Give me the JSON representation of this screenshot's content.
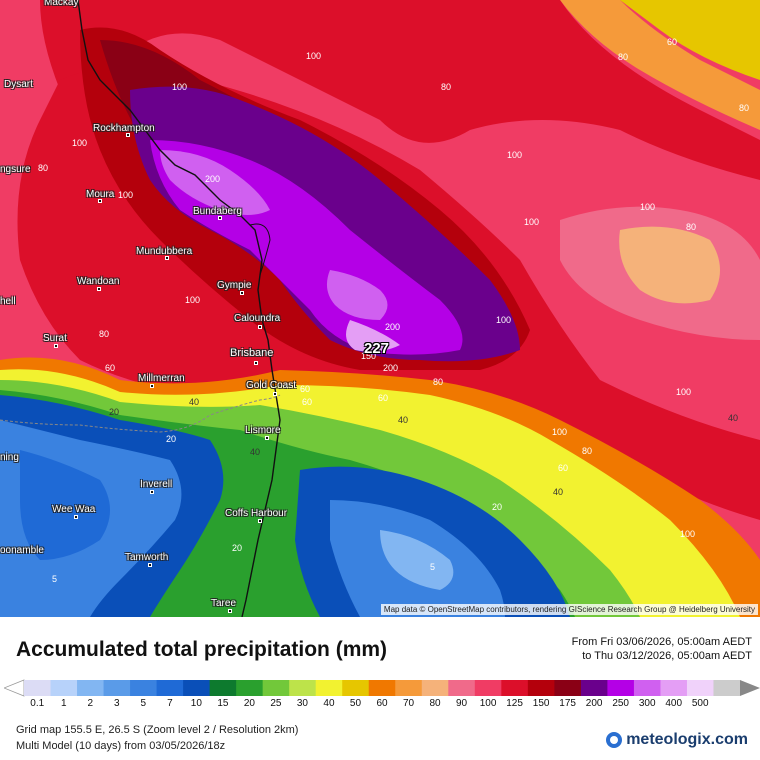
{
  "map": {
    "attribution": "Map data © OpenStreetMap contributors, rendering GIScience Research Group @ Heidelberg University",
    "max_value_label": "227",
    "places": [
      {
        "key": "mackay",
        "name": "Mackay"
      },
      {
        "key": "dysart",
        "name": "Dysart"
      },
      {
        "key": "rockhampton",
        "name": "Rockhampton"
      },
      {
        "key": "emerald",
        "name": "ngsure"
      },
      {
        "key": "moura",
        "name": "Moura"
      },
      {
        "key": "bundaberg",
        "name": "Bundaberg"
      },
      {
        "key": "mundubbera",
        "name": "Mundubbera"
      },
      {
        "key": "wandoan",
        "name": "Wandoan"
      },
      {
        "key": "gympie",
        "name": "Gympie"
      },
      {
        "key": "caloundra",
        "name": "Caloundra"
      },
      {
        "key": "roma",
        "name": "hell"
      },
      {
        "key": "surat",
        "name": "Surat"
      },
      {
        "key": "brisbane",
        "name": "Brisbane"
      },
      {
        "key": "millmerran",
        "name": "Millmerran"
      },
      {
        "key": "goldcoast",
        "name": "Gold Coast"
      },
      {
        "key": "lismore",
        "name": "Lismore"
      },
      {
        "key": "goondiwindi",
        "name": "ning"
      },
      {
        "key": "inverell",
        "name": "Inverell"
      },
      {
        "key": "weewaa",
        "name": "Wee Waa"
      },
      {
        "key": "coffsharbour",
        "name": "Coffs Harbour"
      },
      {
        "key": "narrabri",
        "name": "oonamble"
      },
      {
        "key": "tamworth",
        "name": "Tamworth"
      },
      {
        "key": "taree",
        "name": "Taree"
      }
    ],
    "contour_labels": [
      "60",
      "100",
      "80",
      "100",
      "80",
      "80",
      "100",
      "100",
      "80",
      "200",
      "100",
      "100",
      "80",
      "100",
      "200",
      "150",
      "200",
      "100",
      "80",
      "80",
      "60",
      "100",
      "60",
      "40",
      "100",
      "20",
      "40",
      "40",
      "20",
      "60",
      "40",
      "100",
      "80",
      "60",
      "40",
      "20",
      "5",
      "20",
      "5",
      "100",
      "60"
    ]
  },
  "header": {
    "title": "Accumulated total precipitation (mm)",
    "period_from": "From Fri 03/06/2026, 05:00am AEDT",
    "period_to": "to Thu 03/12/2026, 05:00am AEDT"
  },
  "legend": {
    "labels": [
      "0.1",
      "1",
      "2",
      "3",
      "5",
      "7",
      "10",
      "15",
      "20",
      "25",
      "30",
      "40",
      "50",
      "60",
      "70",
      "80",
      "90",
      "100",
      "125",
      "150",
      "175",
      "200",
      "250",
      "300",
      "400",
      "500"
    ],
    "colors": [
      "#dcdcf5",
      "#b7d2fa",
      "#82b6f2",
      "#5a9be8",
      "#3a82e0",
      "#1f6ad6",
      "#0a4fb8",
      "#0d7a2e",
      "#2aa02e",
      "#72c83a",
      "#bde34a",
      "#f2f230",
      "#e6c600",
      "#f07800",
      "#f59a3a",
      "#f5b27a",
      "#f06a8a",
      "#f03c64",
      "#dc0f2a",
      "#b4000c",
      "#8a0015",
      "#6a008c",
      "#b400e6",
      "#d060f0",
      "#e49ef5",
      "#f0d2fa",
      "#cccccc"
    ]
  },
  "footer": {
    "grid_info": "Grid map 155.5 E, 26.5 S (Zoom level 2 / Resolution 2km)",
    "model_info": "Multi Model (10 days) from  03/05/2026/18z",
    "brand": "meteologix.com"
  }
}
